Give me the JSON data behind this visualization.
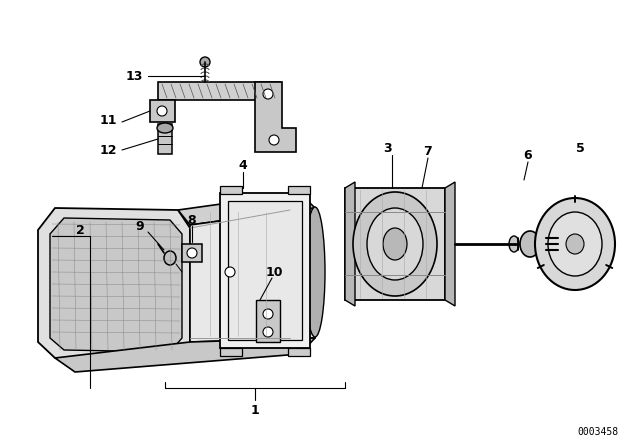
{
  "bg_color": "#ffffff",
  "lc": "#000000",
  "catalog_number": "0003458",
  "figsize": [
    6.4,
    4.48
  ],
  "dpi": 100
}
